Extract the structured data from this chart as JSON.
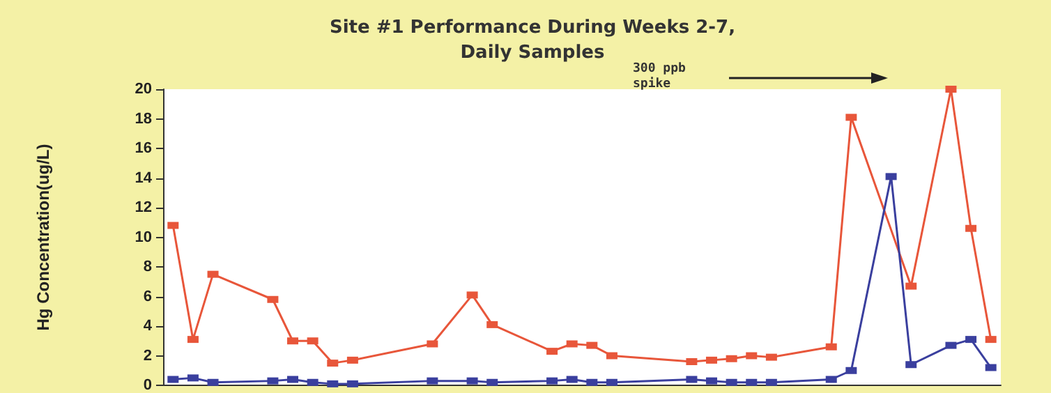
{
  "chart_data": {
    "type": "line",
    "title": "Site #1 Performance During Weeks 2-7,\nDaily Samples",
    "ylabel": "Hg Concentration(ug/L)",
    "annotations": [
      "300 ppb spike"
    ],
    "categories": [
      null,
      null,
      null,
      null,
      null,
      null,
      null,
      null,
      null,
      null,
      null,
      null,
      null,
      null,
      null,
      null,
      null,
      null,
      null,
      null,
      null,
      null,
      null,
      null,
      null,
      null,
      null,
      null,
      null,
      null,
      null,
      null,
      null,
      null,
      null,
      null,
      null,
      null,
      null,
      null,
      null,
      null
    ],
    "ylim": [
      0,
      20
    ],
    "yticks": [
      0,
      2,
      4,
      6,
      8,
      10,
      12,
      14,
      16,
      18,
      20
    ],
    "tick_labels": "y",
    "marker": "square",
    "line_style": "solid",
    "series": [
      {
        "color": "#e8563a",
        "values": [
          10.8,
          3.1,
          7.5,
          null,
          null,
          5.8,
          3.0,
          3.0,
          1.5,
          1.7,
          null,
          null,
          null,
          2.8,
          null,
          6.1,
          4.1,
          null,
          null,
          2.3,
          2.8,
          2.7,
          2.0,
          null,
          null,
          null,
          1.6,
          1.7,
          1.8,
          2.0,
          1.9,
          null,
          null,
          2.6,
          18.1,
          null,
          null,
          6.7,
          null,
          20,
          10.6,
          3.1
        ]
      },
      {
        "color": "#3a3f9e",
        "values": [
          0.4,
          0.5,
          0.2,
          null,
          null,
          0.3,
          0.4,
          0.2,
          0.1,
          0.1,
          null,
          null,
          null,
          0.3,
          null,
          0.3,
          0.2,
          null,
          null,
          0.3,
          0.4,
          0.2,
          0.2,
          null,
          null,
          null,
          0.4,
          0.3,
          0.2,
          0.2,
          0.2,
          null,
          null,
          0.4,
          1.0,
          null,
          14.1,
          1.4,
          null,
          2.7,
          3.1,
          1.2
        ]
      }
    ]
  }
}
